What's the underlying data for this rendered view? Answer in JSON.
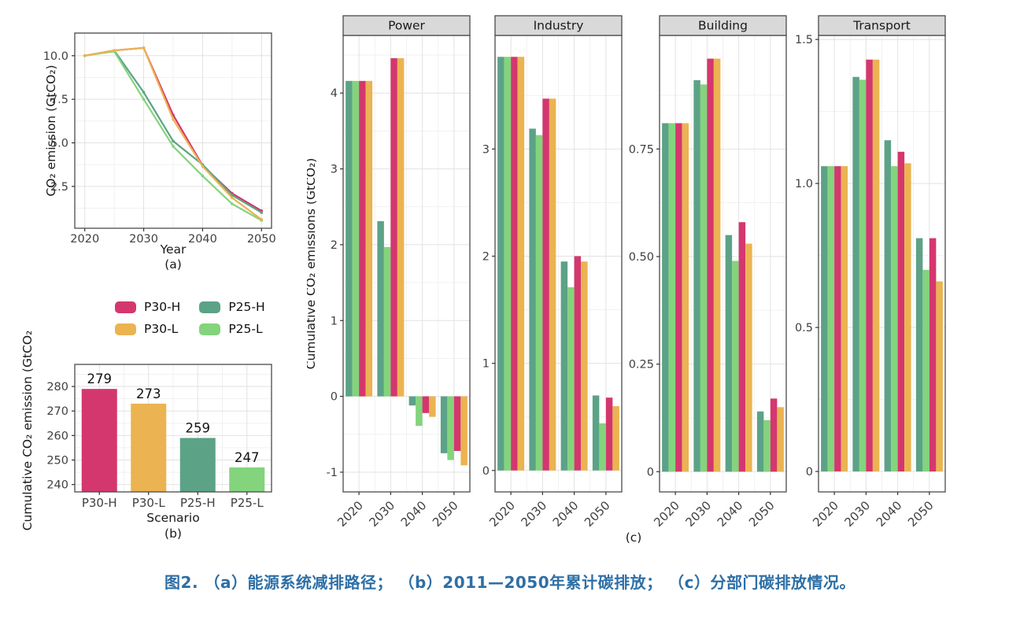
{
  "caption": {
    "text": "图2. （a）能源系统减排路径； （b）2011—2050年累计碳排放； （c）分部门碳排放情况。",
    "color": "#2e6fa6"
  },
  "colors": {
    "P30-H": "#d4376e",
    "P30-L": "#ebb351",
    "P25-H": "#5ca287",
    "P25-L": "#83d47c",
    "grid_major": "#e2e2e2",
    "grid_minor": "#f1f1f1",
    "panel_border": "#4a4a4a",
    "strip_bg": "#d9d9d9",
    "tick_text": "#404040",
    "title_text": "#1a1a1a"
  },
  "legend": {
    "items": [
      {
        "label": "P30-H",
        "color": "#d4376e"
      },
      {
        "label": "P25-H",
        "color": "#5ca287"
      },
      {
        "label": "P30-L",
        "color": "#ebb351"
      },
      {
        "label": "P25-L",
        "color": "#83d47c"
      }
    ]
  },
  "chart_data": [
    {
      "id": "panel_a",
      "type": "line",
      "panel_label": "(a)",
      "xlabel": "Year",
      "ylabel": "CO₂ emission (GtCO₂)",
      "x": [
        2020,
        2025,
        2030,
        2035,
        2040,
        2045,
        2050
      ],
      "series": [
        {
          "name": "P30-H",
          "color": "#d4376e",
          "values": [
            10.0,
            10.3,
            10.45,
            6.6,
            3.7,
            2.1,
            1.1
          ]
        },
        {
          "name": "P25-H",
          "color": "#5ca287",
          "values": [
            10.0,
            10.3,
            7.9,
            5.1,
            3.75,
            2.0,
            1.0
          ]
        },
        {
          "name": "P25-L",
          "color": "#83d47c",
          "values": [
            10.0,
            10.25,
            7.5,
            4.8,
            3.1,
            1.5,
            0.55
          ]
        },
        {
          "name": "P30-L",
          "color": "#ebb351",
          "values": [
            10.0,
            10.3,
            10.45,
            6.35,
            3.65,
            1.85,
            0.6
          ]
        }
      ],
      "xticks": [
        2020,
        2030,
        2040,
        2050
      ],
      "xticks_minor": [
        2025,
        2035,
        2045
      ],
      "yticks": [
        2.5,
        5.0,
        7.5,
        10.0
      ],
      "ytick_labels": [
        "2.5",
        "5.0",
        "7.5",
        "10.0"
      ],
      "yticks_minor": [
        1.25,
        3.75,
        6.25,
        8.75,
        11.25
      ],
      "xlim": [
        2018.3,
        2051.7
      ],
      "ylim": [
        0.1,
        11.3
      ],
      "grid": true,
      "legend_position": "below"
    },
    {
      "id": "panel_b",
      "type": "bar",
      "panel_label": "(b)",
      "xlabel": "Scenario",
      "ylabel": "Cumulative CO₂ emission (GtCO₂)",
      "categories": [
        "P30-H",
        "P30-L",
        "P25-H",
        "P25-L"
      ],
      "values": [
        279,
        273,
        259,
        247
      ],
      "bar_labels": [
        "279",
        "273",
        "259",
        "247"
      ],
      "bar_colors": [
        "#d4376e",
        "#ebb351",
        "#5ca287",
        "#83d47c"
      ],
      "yticks": [
        240,
        250,
        260,
        270,
        280
      ],
      "ytick_labels": [
        "240",
        "250",
        "260",
        "270",
        "280"
      ],
      "yticks_minor": [
        245,
        255,
        265,
        275,
        285
      ],
      "ylim": [
        237,
        289
      ],
      "grid": true
    },
    {
      "id": "panel_c",
      "type": "grouped_bar_facets",
      "panel_label": "(c)",
      "ylabel": "Cumulative CO₂ emissions (GtCO₂)",
      "categories": [
        "2020",
        "2030",
        "2040",
        "2050"
      ],
      "bar_order": [
        "P25-H",
        "P25-L",
        "P30-H",
        "P30-L"
      ],
      "facets": [
        {
          "title": "Power",
          "yticks": [
            -1,
            0,
            1,
            2,
            3,
            4
          ],
          "ytick_labels": [
            "-1",
            "0",
            "1",
            "2",
            "3",
            "4"
          ],
          "yticks_minor": [
            -0.5,
            0.5,
            1.5,
            2.5,
            3.5,
            4.5
          ],
          "ylim": [
            -1.26,
            4.76
          ],
          "series": {
            "P25-H": [
              4.16,
              2.31,
              -0.12,
              -0.75
            ],
            "P25-L": [
              4.16,
              1.97,
              -0.39,
              -0.84
            ],
            "P30-H": [
              4.16,
              4.46,
              -0.22,
              -0.72
            ],
            "P30-L": [
              4.16,
              4.46,
              -0.27,
              -0.91
            ]
          }
        },
        {
          "title": "Industry",
          "yticks": [
            0,
            1,
            2,
            3
          ],
          "ytick_labels": [
            "0",
            "1",
            "2",
            "3"
          ],
          "yticks_minor": [
            0.5,
            1.5,
            2.5,
            3.5
          ],
          "ylim": [
            -0.2,
            4.06
          ],
          "series": {
            "P25-H": [
              3.86,
              3.19,
              1.95,
              0.7
            ],
            "P25-L": [
              3.86,
              3.13,
              1.71,
              0.44
            ],
            "P30-H": [
              3.86,
              3.47,
              2.0,
              0.68
            ],
            "P30-L": [
              3.86,
              3.47,
              1.95,
              0.6
            ]
          }
        },
        {
          "title": "Building",
          "yticks": [
            0,
            0.25,
            0.5,
            0.75
          ],
          "ytick_labels": [
            "0",
            "0.25",
            "0.50",
            "0.75"
          ],
          "yticks_minor": [
            0.125,
            0.375,
            0.625,
            0.875
          ],
          "ylim": [
            -0.047,
            1.014
          ],
          "series": {
            "P25-H": [
              0.81,
              0.91,
              0.55,
              0.14
            ],
            "P25-L": [
              0.81,
              0.9,
              0.49,
              0.12
            ],
            "P30-H": [
              0.81,
              0.96,
              0.58,
              0.17
            ],
            "P30-L": [
              0.81,
              0.96,
              0.53,
              0.15
            ]
          }
        },
        {
          "title": "Transport",
          "yticks": [
            0,
            0.5,
            1.0,
            1.5
          ],
          "ytick_labels": [
            "0",
            "0.5",
            "1.0",
            "1.5"
          ],
          "yticks_minor": [
            0.25,
            0.75,
            1.25
          ],
          "ylim": [
            -0.071,
            1.514
          ],
          "series": {
            "P25-H": [
              1.06,
              1.37,
              1.15,
              0.81
            ],
            "P25-L": [
              1.06,
              1.36,
              1.06,
              0.7
            ],
            "P30-H": [
              1.06,
              1.43,
              1.11,
              0.81
            ],
            "P30-L": [
              1.06,
              1.43,
              1.07,
              0.66
            ]
          }
        }
      ]
    }
  ]
}
